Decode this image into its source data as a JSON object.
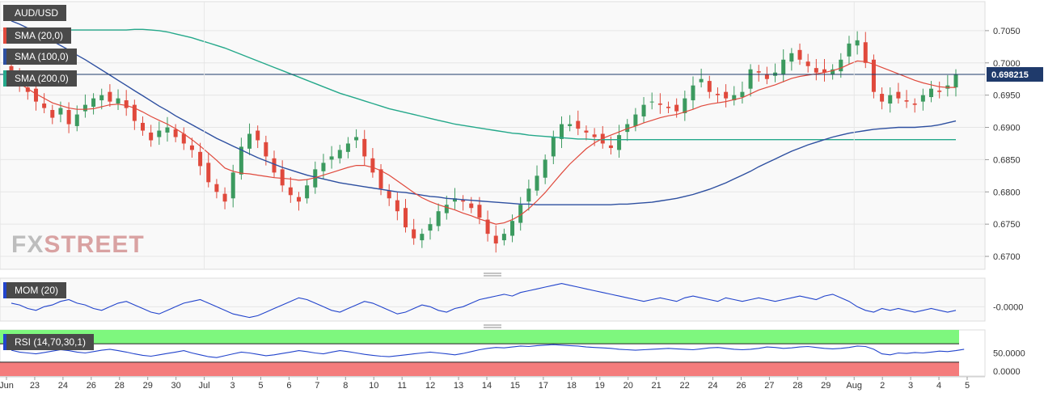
{
  "chart_data": {
    "type": "candlestick",
    "symbol": "AUD/USD",
    "legend": [
      "AUD/USD",
      "SMA (20,0)",
      "SMA (100,0)",
      "SMA (200,0)"
    ],
    "colors": {
      "up": "#3c9a5f",
      "down": "#e0493c",
      "sma20": "#e0493c",
      "sma100": "#2d4fa0",
      "sma200": "#24a88a",
      "mom": "#2244cc",
      "rsi": "#2244cc",
      "rsi_over": "#7ef77e",
      "rsi_under": "#f47c7c"
    },
    "price_axis": {
      "ticks": [
        "0.6700",
        "0.6750",
        "0.6800",
        "0.6850",
        "0.6900",
        "0.6950",
        "0.7000",
        "0.7050"
      ],
      "ylim": [
        0.668,
        0.7095
      ]
    },
    "last_price": {
      "value": 0.698215,
      "label": "0.698215"
    },
    "x_ticks": [
      "Jun",
      "23",
      "24",
      "26",
      "28",
      "29",
      "30",
      "Jul",
      "3",
      "5",
      "6",
      "7",
      "8",
      "10",
      "11",
      "12",
      "13",
      "14",
      "15",
      "17",
      "18",
      "19",
      "20",
      "21",
      "22",
      "24",
      "26",
      "27",
      "28",
      "29",
      "Aug",
      "2",
      "3",
      "4",
      "5"
    ],
    "closes": [
      0.6985,
      0.6965,
      0.6955,
      0.694,
      0.693,
      0.6915,
      0.693,
      0.6905,
      0.692,
      0.6935,
      0.6945,
      0.695,
      0.694,
      0.6945,
      0.693,
      0.691,
      0.6895,
      0.688,
      0.6895,
      0.69,
      0.6885,
      0.6875,
      0.6865,
      0.684,
      0.6815,
      0.68,
      0.6785,
      0.683,
      0.687,
      0.689,
      0.688,
      0.6855,
      0.683,
      0.681,
      0.6795,
      0.6785,
      0.681,
      0.6835,
      0.6845,
      0.6855,
      0.6865,
      0.6875,
      0.6885,
      0.6855,
      0.683,
      0.6805,
      0.679,
      0.677,
      0.6745,
      0.6728,
      0.6735,
      0.675,
      0.677,
      0.678,
      0.679,
      0.6785,
      0.6775,
      0.676,
      0.6735,
      0.672,
      0.6735,
      0.6755,
      0.678,
      0.6805,
      0.6825,
      0.685,
      0.6885,
      0.6905,
      0.6905,
      0.6898,
      0.6892,
      0.6885,
      0.6875,
      0.6868,
      0.6888,
      0.6905,
      0.692,
      0.6935,
      0.694,
      0.6935,
      0.693,
      0.6925,
      0.6945,
      0.6965,
      0.6975,
      0.6955,
      0.695,
      0.6945,
      0.695,
      0.6955,
      0.699,
      0.6985,
      0.6975,
      0.6985,
      0.7005,
      0.7015,
      0.7005,
      0.6995,
      0.6985,
      0.6985,
      0.699,
      0.7005,
      0.703,
      0.7035,
      0.7,
      0.6955,
      0.694,
      0.695,
      0.6945,
      0.694,
      0.6935,
      0.695,
      0.696,
      0.6955,
      0.6965,
      0.698215
    ],
    "sma20": [
      0.6975,
      0.6968,
      0.696,
      0.6952,
      0.6945,
      0.6938,
      0.6934,
      0.693,
      0.6928,
      0.6928,
      0.6929,
      0.6932,
      0.6935,
      0.6936,
      0.6934,
      0.693,
      0.6924,
      0.6917,
      0.6911,
      0.6905,
      0.6898,
      0.689,
      0.6881,
      0.6871,
      0.686,
      0.6849,
      0.6837,
      0.6832,
      0.6829,
      0.6828,
      0.6826,
      0.6824,
      0.6822,
      0.6821,
      0.682,
      0.6818,
      0.6819,
      0.6822,
      0.6826,
      0.683,
      0.6834,
      0.6838,
      0.6841,
      0.6841,
      0.6838,
      0.6833,
      0.6826,
      0.6817,
      0.6808,
      0.6799,
      0.6791,
      0.6785,
      0.678,
      0.6776,
      0.6772,
      0.6767,
      0.6763,
      0.6758,
      0.6754,
      0.675,
      0.6752,
      0.6757,
      0.6764,
      0.6774,
      0.6786,
      0.6799,
      0.6814,
      0.6829,
      0.6843,
      0.6855,
      0.6867,
      0.6876,
      0.6883,
      0.6888,
      0.6893,
      0.6898,
      0.6902,
      0.6907,
      0.6911,
      0.6915,
      0.6918,
      0.692,
      0.6924,
      0.6928,
      0.6933,
      0.6936,
      0.6938,
      0.694,
      0.6943,
      0.6946,
      0.6952,
      0.6958,
      0.6962,
      0.6966,
      0.6971,
      0.6976,
      0.6979,
      0.6981,
      0.6983,
      0.6985,
      0.6988,
      0.6992,
      0.6998,
      0.7003,
      0.7002,
      0.6998,
      0.6993,
      0.6988,
      0.6983,
      0.6978,
      0.6973,
      0.6969,
      0.6966,
      0.6963,
      0.6962,
      0.6962
    ],
    "sma100": [
      0.7065,
      0.706,
      0.7054,
      0.7048,
      0.7041,
      0.7034,
      0.7027,
      0.702,
      0.7012,
      0.7005,
      0.6997,
      0.6989,
      0.6981,
      0.6973,
      0.6965,
      0.6957,
      0.6949,
      0.6941,
      0.6933,
      0.6926,
      0.6918,
      0.6911,
      0.6904,
      0.6897,
      0.689,
      0.6883,
      0.6877,
      0.6871,
      0.6865,
      0.6859,
      0.6853,
      0.6848,
      0.6843,
      0.6838,
      0.6834,
      0.683,
      0.6826,
      0.6823,
      0.682,
      0.6817,
      0.6814,
      0.6812,
      0.681,
      0.6808,
      0.6806,
      0.6804,
      0.6802,
      0.68,
      0.6799,
      0.6797,
      0.6795,
      0.6793,
      0.6792,
      0.679,
      0.6789,
      0.6788,
      0.6787,
      0.6786,
      0.6785,
      0.6784,
      0.6783,
      0.6782,
      0.6781,
      0.6781,
      0.678,
      0.678,
      0.678,
      0.678,
      0.678,
      0.678,
      0.678,
      0.678,
      0.678,
      0.678,
      0.6781,
      0.6781,
      0.6782,
      0.6783,
      0.6784,
      0.6786,
      0.6788,
      0.679,
      0.6793,
      0.6796,
      0.68,
      0.6804,
      0.6809,
      0.6814,
      0.682,
      0.6826,
      0.6832,
      0.6839,
      0.6845,
      0.6851,
      0.6857,
      0.6863,
      0.6868,
      0.6873,
      0.6877,
      0.6881,
      0.6885,
      0.6888,
      0.6891,
      0.6893,
      0.6895,
      0.6897,
      0.6898,
      0.6899,
      0.69,
      0.69,
      0.69,
      0.6901,
      0.6902,
      0.6904,
      0.6907,
      0.691
    ],
    "sma200": [
      0.7052,
      0.7052,
      0.7052,
      0.7052,
      0.7051,
      0.7051,
      0.7051,
      0.7051,
      0.7051,
      0.7051,
      0.7051,
      0.7051,
      0.7051,
      0.7051,
      0.7051,
      0.7052,
      0.7052,
      0.7051,
      0.705,
      0.7048,
      0.7045,
      0.7042,
      0.7039,
      0.7035,
      0.7031,
      0.7027,
      0.7023,
      0.7018,
      0.7013,
      0.7008,
      0.7003,
      0.6998,
      0.6993,
      0.6988,
      0.6983,
      0.6978,
      0.6973,
      0.6968,
      0.6963,
      0.6958,
      0.6953,
      0.6949,
      0.6945,
      0.6941,
      0.6937,
      0.6933,
      0.6929,
      0.6926,
      0.6923,
      0.692,
      0.6917,
      0.6914,
      0.6911,
      0.6908,
      0.6905,
      0.6903,
      0.6901,
      0.6899,
      0.6897,
      0.6895,
      0.6893,
      0.6891,
      0.689,
      0.6888,
      0.6887,
      0.6886,
      0.6885,
      0.6884,
      0.6883,
      0.6882,
      0.6882,
      0.6881,
      0.6881,
      0.6881,
      0.6881,
      0.6881,
      0.6881,
      0.6881,
      0.6881,
      0.6881,
      0.6881,
      0.6881,
      0.6881,
      0.6881,
      0.6881,
      0.6881,
      0.6881,
      0.6881,
      0.6881,
      0.6881,
      0.6881,
      0.6881,
      0.6881,
      0.6881,
      0.6881,
      0.6881,
      0.6881,
      0.6881,
      0.6881,
      0.6881,
      0.6881,
      0.6881,
      0.6881,
      0.6881,
      0.6881,
      0.6881,
      0.6881,
      0.6881,
      0.6881,
      0.6881,
      0.6881,
      0.6881,
      0.6881,
      0.6881,
      0.6881,
      0.6881
    ],
    "mom": {
      "label": "MOM (20)",
      "tick": "-0.0000",
      "values": [
        0.002,
        0.001,
        -0.001,
        -0.002,
        0.0,
        0.001,
        0.003,
        0.004,
        0.002,
        0.001,
        -0.001,
        -0.002,
        0.0,
        0.002,
        0.003,
        0.001,
        -0.001,
        -0.003,
        -0.004,
        -0.002,
        0.0,
        0.002,
        0.003,
        0.004,
        0.002,
        0.0,
        -0.002,
        -0.004,
        -0.005,
        -0.006,
        -0.005,
        -0.003,
        -0.001,
        0.001,
        0.003,
        0.005,
        0.004,
        0.002,
        0.0,
        -0.002,
        -0.003,
        -0.001,
        0.001,
        0.003,
        0.002,
        0.0,
        -0.002,
        -0.004,
        -0.003,
        -0.001,
        0.001,
        0.0,
        -0.002,
        -0.003,
        -0.001,
        0.0,
        0.002,
        0.004,
        0.005,
        0.006,
        0.007,
        0.006,
        0.008,
        0.009,
        0.01,
        0.011,
        0.012,
        0.013,
        0.012,
        0.011,
        0.01,
        0.009,
        0.008,
        0.007,
        0.006,
        0.005,
        0.004,
        0.003,
        0.004,
        0.005,
        0.004,
        0.003,
        0.005,
        0.006,
        0.005,
        0.004,
        0.003,
        0.005,
        0.004,
        0.003,
        0.004,
        0.005,
        0.004,
        0.003,
        0.004,
        0.005,
        0.006,
        0.005,
        0.004,
        0.006,
        0.007,
        0.005,
        0.003,
        0.0,
        -0.002,
        -0.003,
        -0.001,
        -0.002,
        -0.001,
        -0.002,
        -0.003,
        -0.002,
        -0.001,
        -0.002,
        -0.003,
        -0.002
      ],
      "ylim": [
        -0.008,
        0.016
      ]
    },
    "rsi": {
      "label": "RSI (14,70,30,1)",
      "ticks": [
        "50.0000",
        "0.0000"
      ],
      "values": [
        56,
        52,
        50,
        48,
        51,
        54,
        57,
        55,
        52,
        50,
        53,
        56,
        58,
        55,
        52,
        48,
        45,
        43,
        46,
        49,
        52,
        55,
        50,
        46,
        42,
        40,
        44,
        48,
        52,
        50,
        47,
        44,
        46,
        49,
        52,
        55,
        53,
        50,
        48,
        52,
        55,
        53,
        50,
        47,
        45,
        43,
        42,
        44,
        46,
        48,
        50,
        52,
        50,
        48,
        46,
        49,
        53,
        57,
        60,
        62,
        61,
        63,
        65,
        64,
        66,
        67,
        68,
        67,
        66,
        65,
        63,
        62,
        61,
        60,
        58,
        57,
        56,
        57,
        58,
        59,
        60,
        59,
        58,
        57,
        59,
        61,
        62,
        60,
        58,
        57,
        58,
        60,
        63,
        62,
        60,
        61,
        63,
        64,
        62,
        60,
        59,
        60,
        62,
        65,
        64,
        58,
        48,
        46,
        50,
        49,
        51,
        50,
        52,
        54,
        53,
        55,
        58
      ],
      "ylim": [
        0,
        100
      ],
      "overbought": 70,
      "oversold": 30
    },
    "watermark": "FXSTREET"
  }
}
